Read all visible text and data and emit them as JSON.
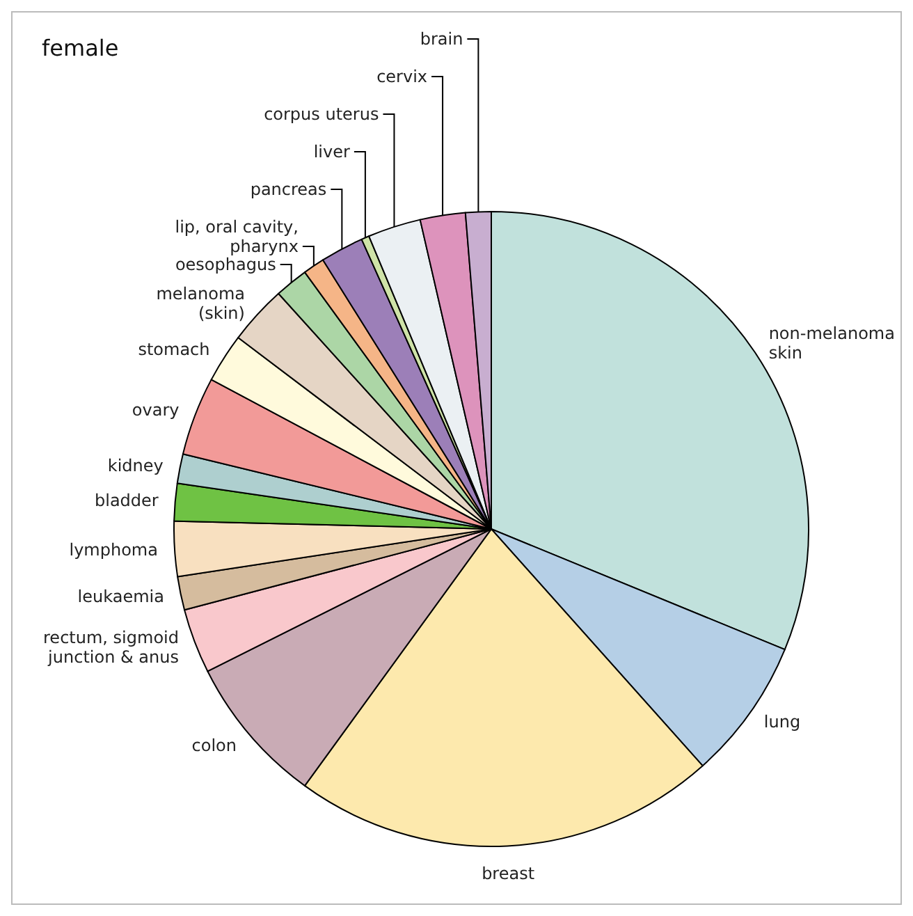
{
  "chart_data": {
    "type": "pie",
    "title": "female",
    "categories": [
      "non-melanoma\nskin",
      "lung",
      "breast",
      "colon",
      "rectum, sigmoid\njunction & anus",
      "leukaemia",
      "lymphoma",
      "bladder",
      "kidney",
      "ovary",
      "stomach",
      "melanoma\n(skin)",
      "oesophagus",
      "lip, oral cavity,\npharynx",
      "pancreas",
      "liver",
      "corpus uterus",
      "cervix",
      "brain"
    ],
    "values": [
      31.2,
      7.2,
      21.6,
      7.6,
      3.3,
      1.7,
      2.8,
      1.9,
      1.5,
      4.0,
      2.5,
      3.0,
      1.7,
      1.1,
      2.2,
      0.4,
      2.7,
      2.3,
      1.3
    ],
    "colors": [
      "#c1e1dc",
      "#b5cfe6",
      "#fde9ad",
      "#c9abb5",
      "#f9c8cc",
      "#d5bc9e",
      "#f8e0c0",
      "#6fc244",
      "#aecfcf",
      "#f29a98",
      "#fffadc",
      "#e5d5c5",
      "#acd6a6",
      "#f5b587",
      "#9c7fb8",
      "#cfe3a8",
      "#ebf0f3",
      "#dd93bc",
      "#c8aed0"
    ]
  }
}
